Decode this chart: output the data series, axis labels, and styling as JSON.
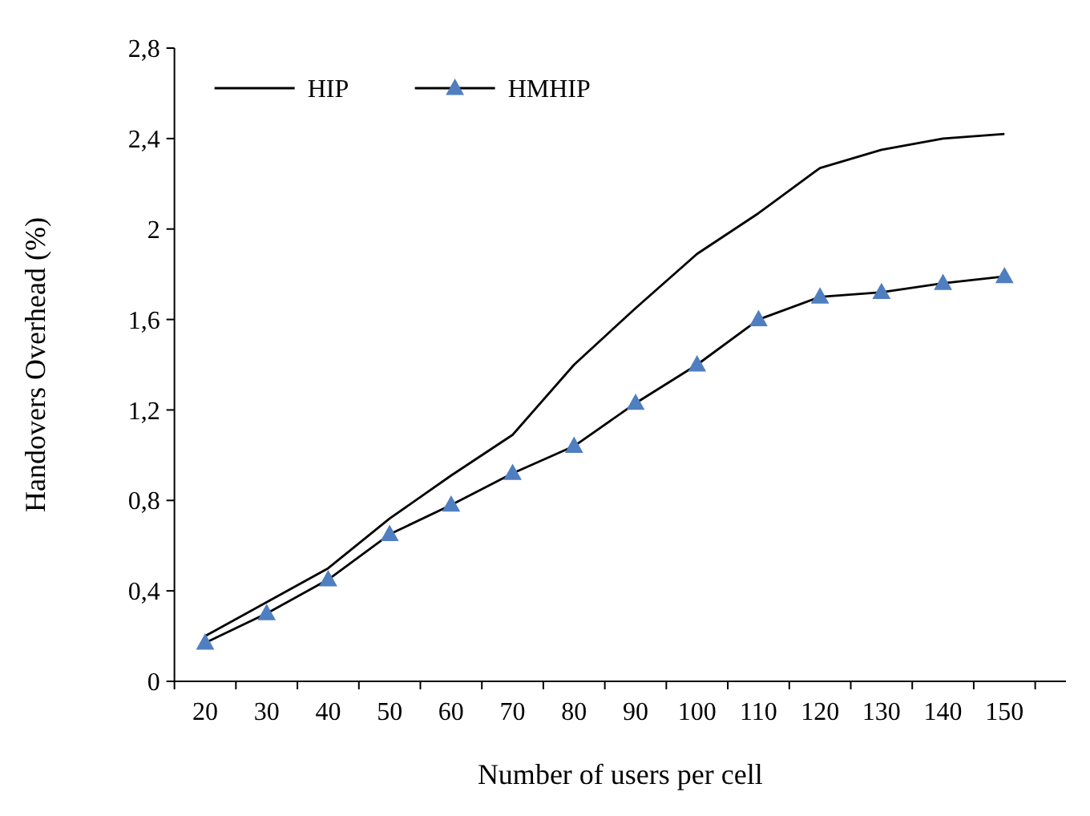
{
  "chart_data": {
    "type": "line",
    "xlabel": "Number of users per cell",
    "ylabel": "Handovers Overhead (%)",
    "categories": [
      "20",
      "30",
      "40",
      "50",
      "60",
      "70",
      "80",
      "90",
      "100",
      "110",
      "120",
      "130",
      "140",
      "150"
    ],
    "series": [
      {
        "name": "HIP",
        "color": "#000000",
        "marker": "none",
        "values": [
          0.2,
          0.35,
          0.5,
          0.72,
          0.91,
          1.09,
          1.4,
          1.65,
          1.89,
          2.07,
          2.27,
          2.35,
          2.4,
          2.42
        ]
      },
      {
        "name": "HMHIP",
        "color": "#4f7fc0",
        "marker": "triangle",
        "values": [
          0.17,
          0.3,
          0.45,
          0.65,
          0.78,
          0.92,
          1.04,
          1.23,
          1.4,
          1.6,
          1.7,
          1.72,
          1.76,
          1.79
        ]
      }
    ],
    "ylim": [
      0,
      2.8
    ],
    "yticks": [
      0,
      {
        "value": 0.4,
        "label": "0,4"
      },
      {
        "value": 0.8,
        "label": "0,8"
      },
      {
        "value": 1.2,
        "label": "1,2"
      },
      {
        "value": 1.6,
        "label": "1,6"
      },
      2,
      {
        "value": 2.4,
        "label": "2,4"
      },
      {
        "value": 2.8,
        "label": "2,8"
      }
    ],
    "legend": "top left",
    "line_style": "solid"
  }
}
